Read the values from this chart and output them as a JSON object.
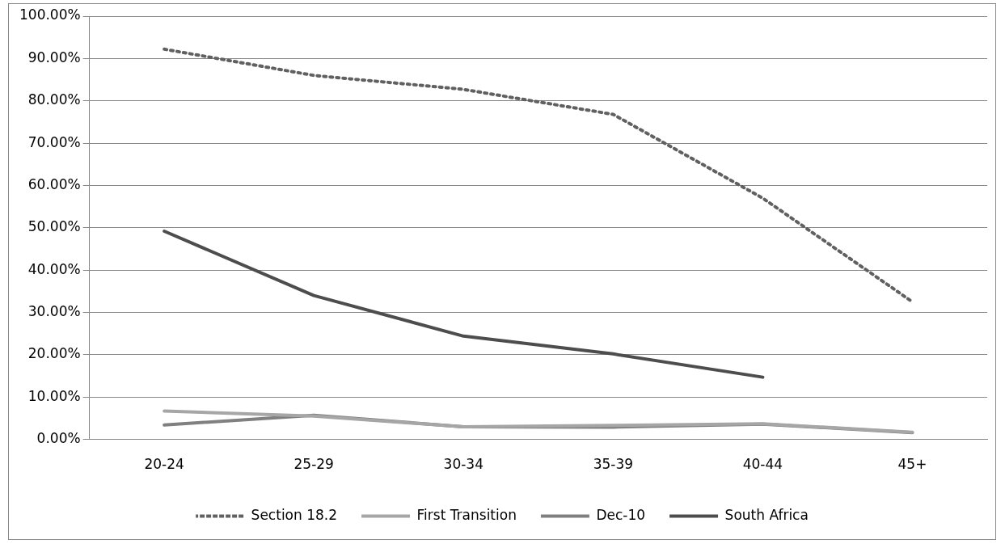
{
  "chart_data": {
    "type": "line",
    "categories": [
      "20-24",
      "25-29",
      "30-34",
      "35-39",
      "40-44",
      "45+"
    ],
    "series": [
      {
        "name": "Section 18.2",
        "color": "#606060",
        "line_style": "dotted",
        "values": [
          92.2,
          86,
          82.7,
          76.8,
          57,
          32.5
        ]
      },
      {
        "name": "First Transition",
        "color": "#a6a6a6",
        "values": [
          6.7,
          5.5,
          3,
          3.3,
          3.7,
          1.7
        ]
      },
      {
        "name": "Dec-10",
        "color": "#808080",
        "values": [
          3.4,
          5.7,
          3,
          2.9,
          3.6,
          1.6
        ]
      },
      {
        "name": "South Africa",
        "color": "#4d4d4d",
        "values": [
          49.2,
          34,
          24.4,
          20.2,
          14.7,
          null
        ]
      }
    ],
    "ylim": [
      0,
      100
    ],
    "yticks": [
      {
        "value": 0,
        "label": "0.00%"
      },
      {
        "value": 10,
        "label": "10.00%"
      },
      {
        "value": 20,
        "label": "20.00%"
      },
      {
        "value": 30,
        "label": "30.00%"
      },
      {
        "value": 40,
        "label": "40.00%"
      },
      {
        "value": 50,
        "label": "50.00%"
      },
      {
        "value": 60,
        "label": "60.00%"
      },
      {
        "value": 70,
        "label": "70.00%"
      },
      {
        "value": 80,
        "label": "80.00%"
      },
      {
        "value": 90,
        "label": "90.00%"
      },
      {
        "value": 100,
        "label": "100.00%"
      }
    ],
    "grid": "y",
    "legend": "bottom",
    "marker": "none",
    "line_style": "solid"
  }
}
